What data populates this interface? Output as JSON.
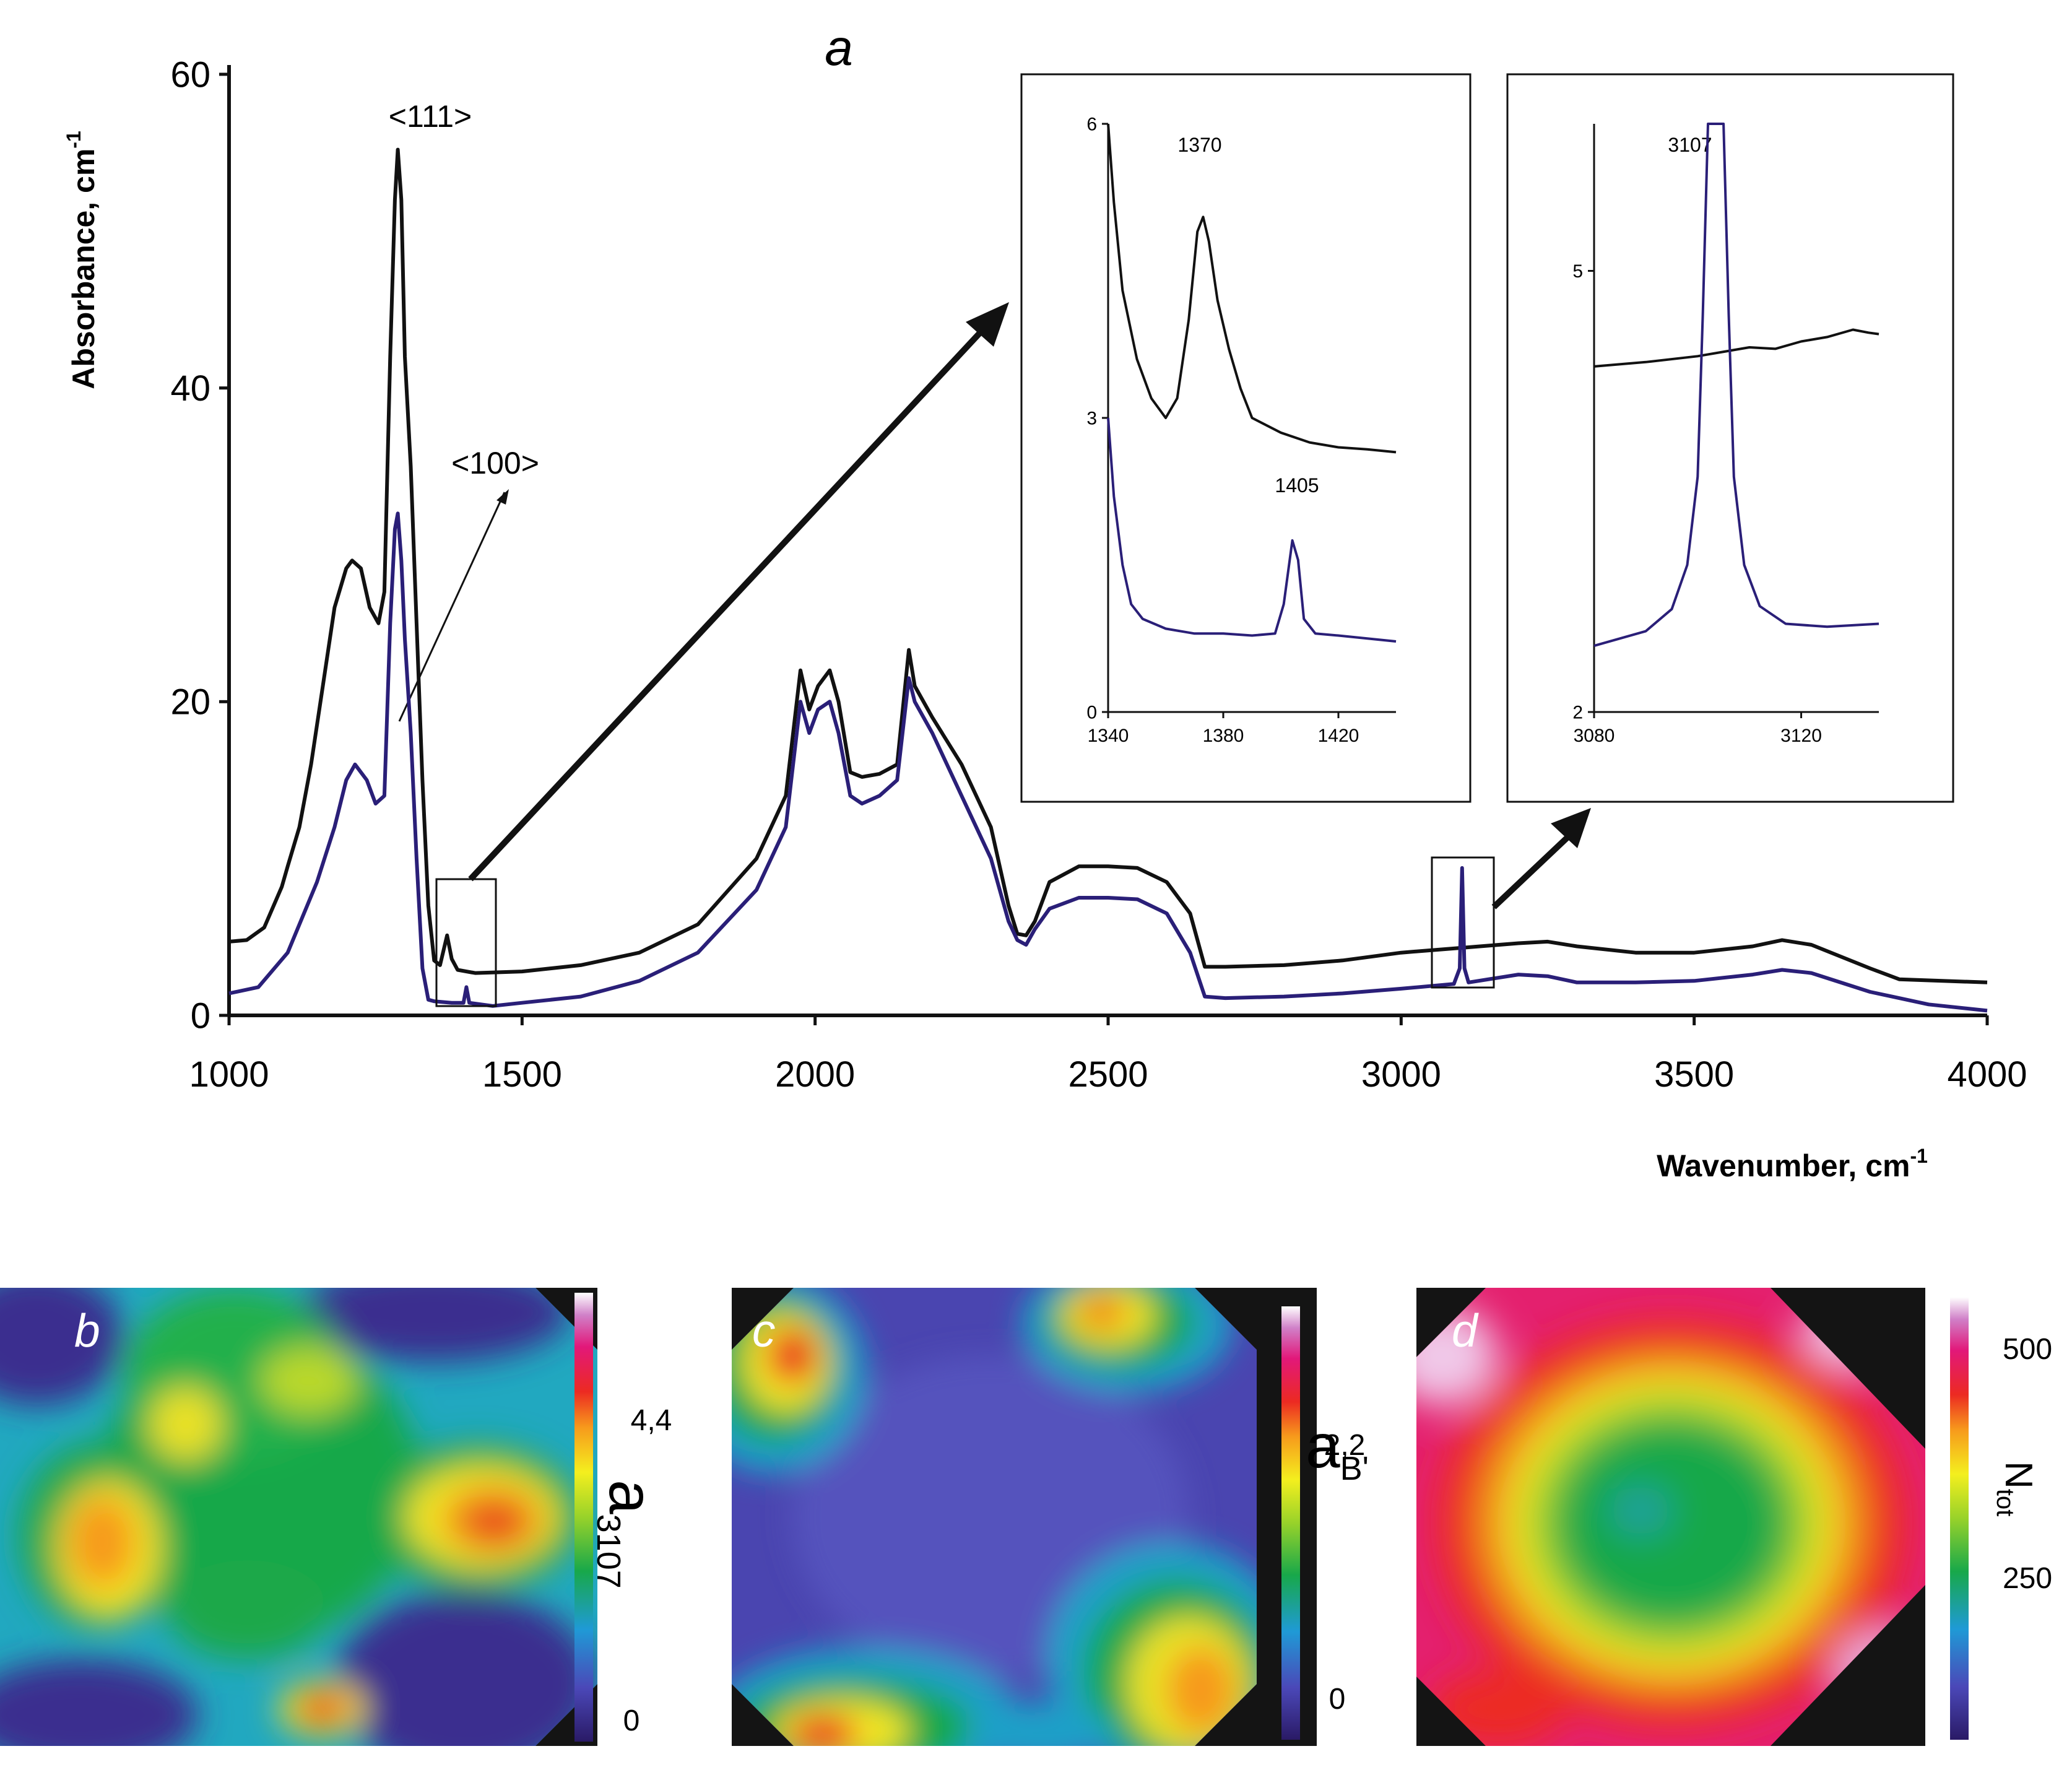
{
  "colors": {
    "black_series": "#111111",
    "blue_series": "#2a1f78",
    "map_background": "#141414"
  },
  "chart_data": [
    {
      "type": "line",
      "panel_label": "a",
      "xlabel": "Wavenumber, cm",
      "xlabel_sup": "-1",
      "ylabel": "Absorbance, cm",
      "ylabel_sup": "-1",
      "xlim": [
        1000,
        4000
      ],
      "ylim": [
        0,
        60
      ],
      "xticks": [
        1000,
        1500,
        2000,
        2500,
        3000,
        3500,
        4000
      ],
      "yticks": [
        0,
        20,
        40,
        60
      ],
      "annotations": [
        "<111>",
        "<100>"
      ],
      "series": [
        {
          "name": "<111>",
          "color": "black_series",
          "points": [
            [
              1000,
              4.7
            ],
            [
              1030,
              4.8
            ],
            [
              1060,
              5.6
            ],
            [
              1090,
              8.2
            ],
            [
              1100,
              9.5
            ],
            [
              1120,
              12
            ],
            [
              1140,
              16
            ],
            [
              1160,
              21
            ],
            [
              1180,
              26
            ],
            [
              1200,
              28.5
            ],
            [
              1210,
              29
            ],
            [
              1225,
              28.5
            ],
            [
              1240,
              26
            ],
            [
              1255,
              25
            ],
            [
              1265,
              27
            ],
            [
              1275,
              42
            ],
            [
              1283,
              52
            ],
            [
              1288,
              55.2
            ],
            [
              1294,
              52
            ],
            [
              1300,
              42
            ],
            [
              1310,
              35
            ],
            [
              1320,
              25
            ],
            [
              1330,
              15
            ],
            [
              1340,
              7
            ],
            [
              1350,
              3.5
            ],
            [
              1360,
              3.2
            ],
            [
              1372,
              5.1
            ],
            [
              1380,
              3.6
            ],
            [
              1390,
              2.9
            ],
            [
              1420,
              2.7
            ],
            [
              1500,
              2.8
            ],
            [
              1600,
              3.2
            ],
            [
              1700,
              4
            ],
            [
              1800,
              5.8
            ],
            [
              1900,
              10
            ],
            [
              1950,
              14
            ],
            [
              1975,
              22
            ],
            [
              1990,
              19.5
            ],
            [
              2005,
              21
            ],
            [
              2025,
              22
            ],
            [
              2040,
              20
            ],
            [
              2060,
              15.5
            ],
            [
              2080,
              15.2
            ],
            [
              2110,
              15.4
            ],
            [
              2140,
              16
            ],
            [
              2160,
              23.3
            ],
            [
              2170,
              21
            ],
            [
              2200,
              19
            ],
            [
              2250,
              16
            ],
            [
              2300,
              12
            ],
            [
              2330,
              7
            ],
            [
              2345,
              5.2
            ],
            [
              2360,
              5.1
            ],
            [
              2375,
              6
            ],
            [
              2400,
              8.5
            ],
            [
              2450,
              9.5
            ],
            [
              2500,
              9.5
            ],
            [
              2550,
              9.4
            ],
            [
              2600,
              8.5
            ],
            [
              2640,
              6.5
            ],
            [
              2665,
              3.1
            ],
            [
              2700,
              3.1
            ],
            [
              2800,
              3.2
            ],
            [
              2900,
              3.5
            ],
            [
              3000,
              4
            ],
            [
              3100,
              4.3
            ],
            [
              3200,
              4.6
            ],
            [
              3250,
              4.7
            ],
            [
              3300,
              4.4
            ],
            [
              3400,
              4
            ],
            [
              3500,
              4
            ],
            [
              3600,
              4.4
            ],
            [
              3650,
              4.8
            ],
            [
              3700,
              4.5
            ],
            [
              3800,
              3
            ],
            [
              3850,
              2.3
            ],
            [
              4000,
              2.1
            ]
          ]
        },
        {
          "name": "<100>",
          "color": "blue_series",
          "points": [
            [
              1000,
              1.4
            ],
            [
              1050,
              1.8
            ],
            [
              1100,
              4
            ],
            [
              1150,
              8.5
            ],
            [
              1180,
              12
            ],
            [
              1200,
              15
            ],
            [
              1215,
              16
            ],
            [
              1235,
              15
            ],
            [
              1250,
              13.5
            ],
            [
              1265,
              14
            ],
            [
              1275,
              25
            ],
            [
              1283,
              31
            ],
            [
              1288,
              32
            ],
            [
              1294,
              29
            ],
            [
              1300,
              24
            ],
            [
              1310,
              18
            ],
            [
              1320,
              10
            ],
            [
              1330,
              3
            ],
            [
              1340,
              1
            ],
            [
              1350,
              0.9
            ],
            [
              1380,
              0.8
            ],
            [
              1400,
              0.8
            ],
            [
              1405,
              1.8
            ],
            [
              1410,
              0.8
            ],
            [
              1450,
              0.6
            ],
            [
              1500,
              0.8
            ],
            [
              1600,
              1.2
            ],
            [
              1700,
              2.2
            ],
            [
              1800,
              4
            ],
            [
              1900,
              8
            ],
            [
              1950,
              12
            ],
            [
              1975,
              20
            ],
            [
              1990,
              18
            ],
            [
              2005,
              19.5
            ],
            [
              2025,
              20
            ],
            [
              2040,
              18
            ],
            [
              2060,
              14
            ],
            [
              2080,
              13.5
            ],
            [
              2110,
              14
            ],
            [
              2140,
              15
            ],
            [
              2160,
              21.5
            ],
            [
              2170,
              20
            ],
            [
              2200,
              18
            ],
            [
              2250,
              14
            ],
            [
              2300,
              10
            ],
            [
              2330,
              6
            ],
            [
              2345,
              4.8
            ],
            [
              2360,
              4.5
            ],
            [
              2375,
              5.5
            ],
            [
              2400,
              6.8
            ],
            [
              2450,
              7.5
            ],
            [
              2500,
              7.5
            ],
            [
              2550,
              7.4
            ],
            [
              2600,
              6.5
            ],
            [
              2640,
              4
            ],
            [
              2665,
              1.2
            ],
            [
              2700,
              1.1
            ],
            [
              2800,
              1.2
            ],
            [
              2900,
              1.4
            ],
            [
              3000,
              1.7
            ],
            [
              3090,
              2
            ],
            [
              3100,
              3
            ],
            [
              3104,
              9.4
            ],
            [
              3108,
              3
            ],
            [
              3115,
              2.1
            ],
            [
              3200,
              2.6
            ],
            [
              3250,
              2.5
            ],
            [
              3300,
              2.1
            ],
            [
              3400,
              2.1
            ],
            [
              3500,
              2.2
            ],
            [
              3600,
              2.6
            ],
            [
              3650,
              2.9
            ],
            [
              3700,
              2.7
            ],
            [
              3800,
              1.5
            ],
            [
              3900,
              0.7
            ],
            [
              4000,
              0.3
            ]
          ]
        }
      ]
    },
    {
      "type": "line",
      "panel_label": "inset-1370",
      "xlim": [
        1340,
        1440
      ],
      "ylim": [
        0,
        6
      ],
      "xticks": [
        1340,
        1380,
        1420
      ],
      "yticks": [
        0,
        3,
        6
      ],
      "annotations": [
        "1370",
        "1405"
      ],
      "series": [
        {
          "name": "<111>",
          "color": "black_series",
          "points": [
            [
              1340,
              6
            ],
            [
              1342,
              5.2
            ],
            [
              1345,
              4.3
            ],
            [
              1350,
              3.6
            ],
            [
              1355,
              3.2
            ],
            [
              1360,
              3
            ],
            [
              1364,
              3.2
            ],
            [
              1368,
              4
            ],
            [
              1371,
              4.9
            ],
            [
              1373,
              5.05
            ],
            [
              1375,
              4.8
            ],
            [
              1378,
              4.2
            ],
            [
              1382,
              3.7
            ],
            [
              1386,
              3.3
            ],
            [
              1390,
              3
            ],
            [
              1400,
              2.85
            ],
            [
              1410,
              2.75
            ],
            [
              1420,
              2.7
            ],
            [
              1430,
              2.68
            ],
            [
              1440,
              2.65
            ]
          ]
        },
        {
          "name": "<100>",
          "color": "blue_series",
          "points": [
            [
              1340,
              3
            ],
            [
              1342,
              2.2
            ],
            [
              1345,
              1.5
            ],
            [
              1348,
              1.1
            ],
            [
              1352,
              0.95
            ],
            [
              1360,
              0.85
            ],
            [
              1370,
              0.8
            ],
            [
              1380,
              0.8
            ],
            [
              1390,
              0.78
            ],
            [
              1398,
              0.8
            ],
            [
              1401,
              1.1
            ],
            [
              1404,
              1.75
            ],
            [
              1406,
              1.55
            ],
            [
              1408,
              0.95
            ],
            [
              1412,
              0.8
            ],
            [
              1420,
              0.78
            ],
            [
              1430,
              0.75
            ],
            [
              1440,
              0.72
            ]
          ]
        }
      ]
    },
    {
      "type": "line",
      "panel_label": "inset-3107",
      "xlim": [
        3080,
        3135
      ],
      "ylim": [
        2,
        6
      ],
      "xticks": [
        3080,
        3120
      ],
      "yticks": [
        2,
        5
      ],
      "annotations": [
        "3107"
      ],
      "series": [
        {
          "name": "<111>",
          "color": "black_series",
          "points": [
            [
              3080,
              4.35
            ],
            [
              3090,
              4.38
            ],
            [
              3100,
              4.42
            ],
            [
              3110,
              4.48
            ],
            [
              3115,
              4.47
            ],
            [
              3120,
              4.52
            ],
            [
              3125,
              4.55
            ],
            [
              3130,
              4.6
            ],
            [
              3133,
              4.58
            ],
            [
              3135,
              4.57
            ]
          ]
        },
        {
          "name": "<100>",
          "color": "blue_series",
          "points": [
            [
              3080,
              2.45
            ],
            [
              3090,
              2.55
            ],
            [
              3095,
              2.7
            ],
            [
              3098,
              3
            ],
            [
              3100,
              3.6
            ],
            [
              3101,
              4.7
            ],
            [
              3102,
              6.2
            ],
            [
              3105,
              6.2
            ],
            [
              3106,
              4.7
            ],
            [
              3107,
              3.6
            ],
            [
              3109,
              3
            ],
            [
              3112,
              2.72
            ],
            [
              3117,
              2.6
            ],
            [
              3125,
              2.58
            ],
            [
              3135,
              2.6
            ]
          ]
        }
      ]
    },
    {
      "type": "heatmap",
      "panel_label": "b",
      "colorbar_label": "a",
      "colorbar_subscript": "3107",
      "colorbar_ticks": [
        "4,4",
        "0"
      ]
    },
    {
      "type": "heatmap",
      "panel_label": "c",
      "colorbar_label": "a",
      "colorbar_subscript": "B'",
      "colorbar_ticks": [
        "2,2",
        "0"
      ]
    },
    {
      "type": "heatmap",
      "panel_label": "d",
      "colorbar_label": "N",
      "colorbar_subscript": "tot",
      "colorbar_ticks": [
        "500",
        "250"
      ]
    }
  ]
}
